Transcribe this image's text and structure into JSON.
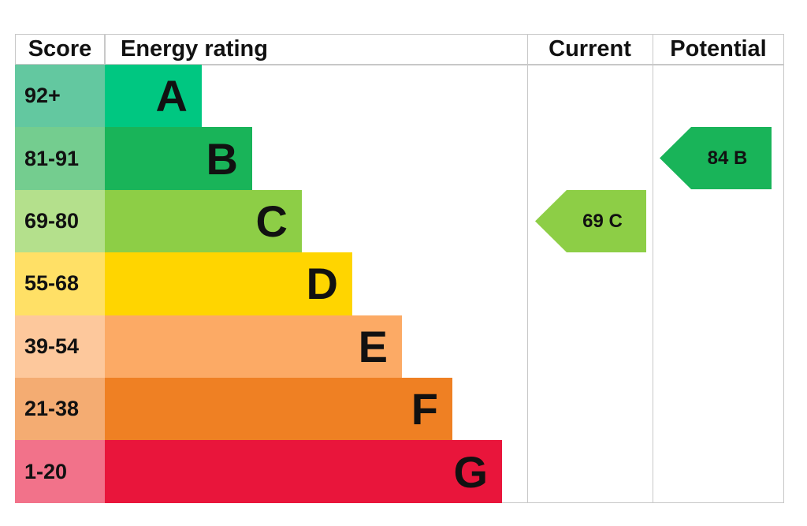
{
  "headers": {
    "score": "Score",
    "rating": "Energy rating",
    "current": "Current",
    "potential": "Potential"
  },
  "rows": [
    {
      "band": "A",
      "range": "92+",
      "bar_color": "#00c781",
      "score_color": "#63c8a0"
    },
    {
      "band": "B",
      "range": "81-91",
      "bar_color": "#19b459",
      "score_color": "#74cd8f"
    },
    {
      "band": "C",
      "range": "69-80",
      "bar_color": "#8dce46",
      "score_color": "#b4e08c"
    },
    {
      "band": "D",
      "range": "55-68",
      "bar_color": "#ffd500",
      "score_color": "#ffe066"
    },
    {
      "band": "E",
      "range": "39-54",
      "bar_color": "#fcaa65",
      "score_color": "#fdc89c"
    },
    {
      "band": "F",
      "range": "21-38",
      "bar_color": "#ef8023",
      "score_color": "#f4ac72"
    },
    {
      "band": "G",
      "range": "1-20",
      "bar_color": "#e9153b",
      "score_color": "#f2728a"
    }
  ],
  "current": {
    "label": "69  C",
    "score": 69,
    "band": "C",
    "color": "#8dce46"
  },
  "potential": {
    "label": "84  B",
    "score": 84,
    "band": "B",
    "color": "#19b459"
  },
  "chart_data": {
    "type": "bar",
    "title": "Energy rating",
    "categories": [
      "A",
      "B",
      "C",
      "D",
      "E",
      "F",
      "G"
    ],
    "score_ranges": [
      "92+",
      "81-91",
      "69-80",
      "55-68",
      "39-54",
      "21-38",
      "1-20"
    ],
    "colors": [
      "#00c781",
      "#19b459",
      "#8dce46",
      "#ffd500",
      "#fcaa65",
      "#ef8023",
      "#e9153b"
    ],
    "series": [
      {
        "name": "Current",
        "value": 69,
        "band": "C"
      },
      {
        "name": "Potential",
        "value": 84,
        "band": "B"
      }
    ]
  }
}
